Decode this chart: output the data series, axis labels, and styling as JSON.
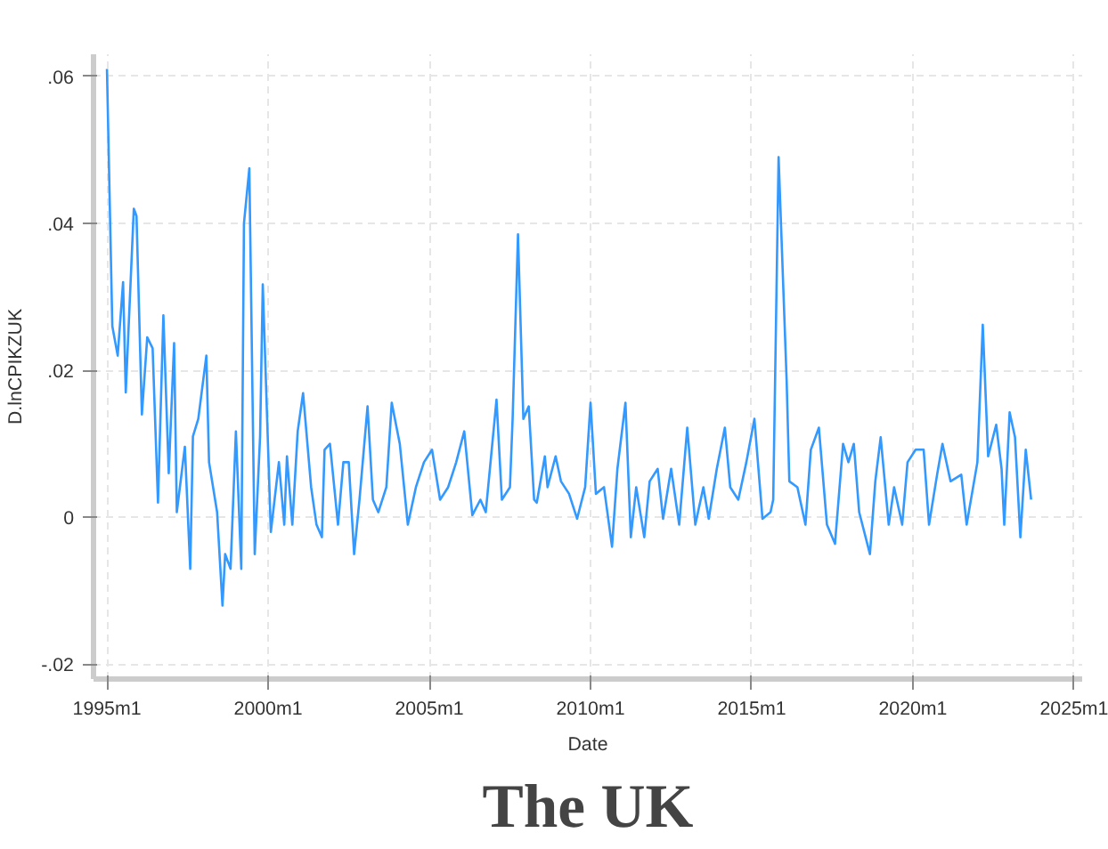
{
  "chart_data": {
    "type": "line",
    "title": "The UK",
    "xlabel": "Date",
    "ylabel": "D.lnCPIKZUK",
    "xlim": [
      "1994-08",
      "2025-04"
    ],
    "ylim": [
      -0.022,
      0.063
    ],
    "xticks": [
      {
        "value": "1995-01",
        "label": "1995m1"
      },
      {
        "value": "2000-01",
        "label": "2000m1"
      },
      {
        "value": "2005-01",
        "label": "2005m1"
      },
      {
        "value": "2010-01",
        "label": "2010m1"
      },
      {
        "value": "2015-01",
        "label": "2015m1"
      },
      {
        "value": "2020-01",
        "label": "2020m1"
      },
      {
        "value": "2025-01",
        "label": "2025m1"
      }
    ],
    "yticks": [
      {
        "value": -0.02,
        "label": "-.02"
      },
      0,
      {
        "value": 0.02,
        "label": ".02"
      },
      {
        "value": 0.04,
        "label": ".04"
      },
      {
        "value": 0.06,
        "label": ".06"
      }
    ],
    "grid": true,
    "marker": "none",
    "line_style": "solid",
    "series": [
      {
        "color": "#3399ff",
        "x": [
          "1995-01",
          "1995-03",
          "1995-05",
          "1995-07",
          "1995-08",
          "1995-11",
          "1995-12",
          "1996-02",
          "1996-04",
          "1996-06",
          "1996-08",
          "1996-10",
          "1996-12",
          "1997-02",
          "1997-03",
          "1997-06",
          "1997-08",
          "1997-09",
          "1997-11",
          "1998-02",
          "1998-03",
          "1998-06",
          "1998-08",
          "1998-09",
          "1998-11",
          "1999-01",
          "1999-03",
          "1999-04",
          "1999-06",
          "1999-08",
          "1999-10",
          "1999-11",
          "2000-02",
          "2000-05",
          "2000-07",
          "2000-08",
          "2000-10",
          "2000-12",
          "2001-02",
          "2001-05",
          "2001-07",
          "2001-09",
          "2001-10",
          "2001-12",
          "2002-03",
          "2002-05",
          "2002-07",
          "2002-09",
          "2002-11",
          "2003-02",
          "2003-04",
          "2003-06",
          "2003-09",
          "2003-11",
          "2004-02",
          "2004-05",
          "2004-08",
          "2004-11",
          "2005-02",
          "2005-05",
          "2005-08",
          "2005-11",
          "2006-02",
          "2006-05",
          "2006-08",
          "2006-10",
          "2007-02",
          "2007-04",
          "2007-07",
          "2007-08",
          "2007-10",
          "2007-12",
          "2008-02",
          "2008-04",
          "2008-05",
          "2008-08",
          "2008-09",
          "2008-12",
          "2009-02",
          "2009-05",
          "2009-08",
          "2009-11",
          "2010-01",
          "2010-03",
          "2010-06",
          "2010-09",
          "2010-11",
          "2011-02",
          "2011-04",
          "2011-06",
          "2011-09",
          "2011-11",
          "2012-02",
          "2012-04",
          "2012-07",
          "2012-10",
          "2013-01",
          "2013-04",
          "2013-07",
          "2013-09",
          "2013-12",
          "2014-03",
          "2014-05",
          "2014-08",
          "2014-11",
          "2015-02",
          "2015-05",
          "2015-08",
          "2015-09",
          "2015-11",
          "2016-02",
          "2016-03",
          "2016-06",
          "2016-09",
          "2016-11",
          "2017-02",
          "2017-05",
          "2017-08",
          "2017-11",
          "2018-01",
          "2018-03",
          "2018-05",
          "2018-09",
          "2018-11",
          "2019-01",
          "2019-04",
          "2019-06",
          "2019-09",
          "2019-11",
          "2020-02",
          "2020-05",
          "2020-07",
          "2020-10",
          "2020-12",
          "2021-03",
          "2021-07",
          "2021-09",
          "2022-01",
          "2022-03",
          "2022-05",
          "2022-08",
          "2022-10",
          "2022-11",
          "2023-01",
          "2023-03",
          "2023-05",
          "2023-07",
          "2023-09"
        ],
        "values": [
          0.061,
          0.026,
          0.022,
          0.032,
          0.017,
          0.042,
          0.041,
          0.014,
          0.0245,
          0.023,
          0.002,
          0.0275,
          0.006,
          0.0237,
          0.0007,
          0.0096,
          -0.007,
          0.011,
          0.0134,
          0.022,
          0.0075,
          0.0007,
          -0.012,
          -0.005,
          -0.007,
          0.0117,
          -0.007,
          0.04,
          0.0475,
          -0.005,
          0.011,
          0.0317,
          -0.002,
          0.0075,
          -0.001,
          0.0083,
          -0.001,
          0.0117,
          0.0169,
          0.0041,
          -0.001,
          -0.0027,
          0.0092,
          0.01,
          -0.001,
          0.0075,
          0.0075,
          -0.005,
          0.0024,
          0.0151,
          0.0024,
          0.0007,
          0.0041,
          0.0156,
          0.01,
          -0.001,
          0.0041,
          0.0075,
          0.0092,
          0.0024,
          0.0041,
          0.0075,
          0.0117,
          0.0003,
          0.0024,
          0.0007,
          0.016,
          0.0024,
          0.0041,
          0.0134,
          0.0385,
          0.0134,
          0.0151,
          0.0024,
          0.002,
          0.0083,
          0.0041,
          0.0083,
          0.0049,
          0.0032,
          -0.0002,
          0.0041,
          0.0156,
          0.0032,
          0.0041,
          -0.004,
          0.0066,
          0.0156,
          -0.0027,
          0.0041,
          -0.0027,
          0.0049,
          0.0066,
          -0.0002,
          0.0066,
          -0.001,
          0.0122,
          -0.001,
          0.0041,
          -0.0002,
          0.0066,
          0.0122,
          0.0041,
          0.0024,
          0.0075,
          0.0134,
          -0.0002,
          0.0007,
          0.0024,
          0.049,
          0.0186,
          0.0049,
          0.0041,
          -0.001,
          0.0092,
          0.0122,
          -0.001,
          -0.0036,
          0.01,
          0.0075,
          0.01,
          0.0007,
          -0.005,
          0.0049,
          0.0109,
          -0.001,
          0.0041,
          -0.001,
          0.0075,
          0.0092,
          0.0092,
          -0.001,
          0.0058,
          0.01,
          0.0049,
          0.0058,
          -0.001,
          0.0075,
          0.0262,
          0.0083,
          0.0126,
          0.0066,
          -0.001,
          0.0143,
          0.0109,
          -0.0027,
          0.0092,
          0.0024
        ]
      }
    ]
  }
}
